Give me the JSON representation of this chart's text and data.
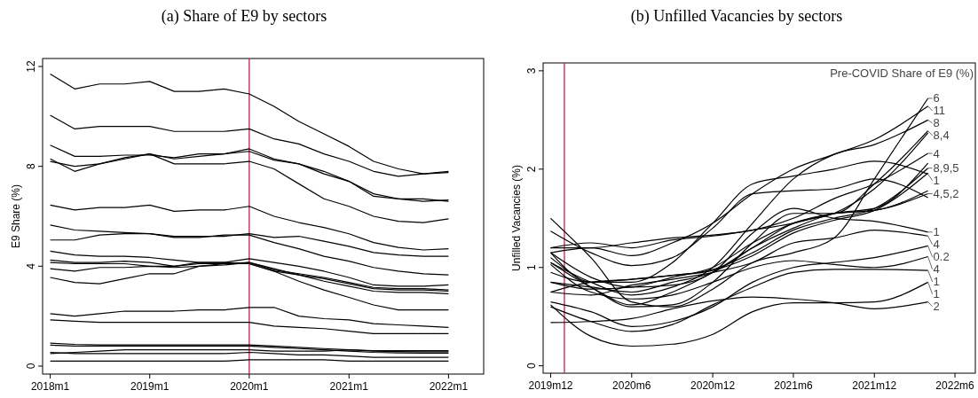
{
  "chart_data": [
    {
      "type": "line",
      "title": "(a) Share of E9 by sectors",
      "ylabel": "E9 Share (%)",
      "x": [
        "2018-01",
        "2018-04",
        "2018-07",
        "2018-10",
        "2019-01",
        "2019-04",
        "2019-07",
        "2019-10",
        "2020-01",
        "2020-04",
        "2020-07",
        "2020-10",
        "2021-01",
        "2021-04",
        "2021-07",
        "2021-10",
        "2022-01"
      ],
      "xlim": [
        "2017-12-04",
        "2022-05-10"
      ],
      "xticks": [
        {
          "value": "2018-01",
          "label": "2018m1"
        },
        {
          "value": "2019-01",
          "label": "2019m1"
        },
        {
          "value": "2020-01",
          "label": "2020m1"
        },
        {
          "value": "2021-01",
          "label": "2021m1"
        },
        {
          "value": "2022-01",
          "label": "2022m1"
        }
      ],
      "ylim": [
        -0.32,
        12.32
      ],
      "yticks": [
        0,
        4,
        8,
        12
      ],
      "grid": false,
      "ref_lines": [
        {
          "axis": "x",
          "value": "2020-01",
          "color": "#c8204a"
        }
      ],
      "series": [
        {
          "color": "#000000",
          "values": [
            11.7,
            11.1,
            11.3,
            11.3,
            11.4,
            11.0,
            11.0,
            11.1,
            10.9,
            10.4,
            9.8,
            9.3,
            8.8,
            8.2,
            7.9,
            7.7,
            7.8
          ]
        },
        {
          "color": "#000000",
          "values": [
            10.05,
            9.5,
            9.6,
            9.6,
            9.6,
            9.4,
            9.4,
            9.4,
            9.5,
            9.1,
            8.9,
            8.5,
            8.2,
            7.8,
            7.6,
            7.7,
            7.75
          ]
        },
        {
          "color": "#000000",
          "values": [
            8.85,
            8.4,
            8.4,
            8.45,
            8.45,
            8.35,
            8.5,
            8.5,
            8.7,
            8.3,
            8.1,
            7.8,
            7.4,
            6.8,
            6.7,
            6.6,
            6.65
          ]
        },
        {
          "color": "#000000",
          "values": [
            8.3,
            7.8,
            8.1,
            8.3,
            8.5,
            8.3,
            8.4,
            8.5,
            8.6,
            8.25,
            8.1,
            7.7,
            7.4,
            6.9,
            6.7,
            6.7,
            6.6
          ]
        },
        {
          "color": "#000000",
          "values": [
            8.2,
            8.0,
            8.1,
            8.35,
            8.5,
            8.1,
            8.1,
            8.1,
            8.2,
            7.9,
            7.3,
            6.7,
            6.4,
            6.0,
            5.8,
            5.75,
            5.9
          ]
        },
        {
          "color": "#000000",
          "values": [
            6.45,
            6.25,
            6.35,
            6.35,
            6.45,
            6.2,
            6.25,
            6.25,
            6.4,
            6.0,
            5.75,
            5.55,
            5.3,
            4.95,
            4.75,
            4.65,
            4.7
          ]
        },
        {
          "color": "#000000",
          "values": [
            5.65,
            5.45,
            5.4,
            5.35,
            5.3,
            5.2,
            5.2,
            5.2,
            5.3,
            5.15,
            5.2,
            5.0,
            4.8,
            4.55,
            4.45,
            4.4,
            4.4
          ]
        },
        {
          "color": "#000000",
          "values": [
            5.05,
            5.05,
            5.25,
            5.3,
            5.3,
            5.15,
            5.15,
            5.25,
            5.25,
            4.95,
            4.7,
            4.4,
            4.2,
            3.95,
            3.8,
            3.7,
            3.65
          ]
        },
        {
          "color": "#000000",
          "values": [
            4.6,
            4.45,
            4.4,
            4.4,
            4.35,
            4.25,
            4.15,
            4.15,
            4.3,
            4.15,
            4.0,
            3.8,
            3.55,
            3.25,
            3.2,
            3.2,
            3.25
          ]
        },
        {
          "color": "#000000",
          "values": [
            4.25,
            4.15,
            4.15,
            4.2,
            4.15,
            4.0,
            4.1,
            4.1,
            4.15,
            3.85,
            3.7,
            3.55,
            3.35,
            3.15,
            3.1,
            3.1,
            3.05
          ]
        },
        {
          "color": "#000000",
          "values": [
            4.15,
            4.1,
            4.1,
            4.1,
            4.0,
            4.0,
            4.15,
            4.15,
            4.1,
            3.8,
            3.65,
            3.5,
            3.3,
            3.1,
            3.05,
            3.05,
            3.0
          ]
        },
        {
          "color": "#000000",
          "values": [
            3.9,
            3.8,
            3.95,
            3.95,
            4.0,
            3.95,
            4.0,
            4.05,
            4.15,
            3.9,
            3.65,
            3.4,
            3.2,
            3.0,
            2.95,
            2.95,
            2.9
          ]
        },
        {
          "color": "#000000",
          "values": [
            3.55,
            3.35,
            3.3,
            3.5,
            3.7,
            3.7,
            4.0,
            4.1,
            4.1,
            3.8,
            3.4,
            3.05,
            2.75,
            2.45,
            2.25,
            2.25,
            2.25
          ]
        },
        {
          "color": "#000000",
          "values": [
            2.1,
            2.0,
            2.1,
            2.2,
            2.2,
            2.2,
            2.25,
            2.25,
            2.35,
            2.35,
            2.0,
            1.9,
            1.85,
            1.7,
            1.65,
            1.6,
            1.55
          ]
        },
        {
          "color": "#000000",
          "values": [
            1.85,
            1.8,
            1.75,
            1.75,
            1.75,
            1.75,
            1.75,
            1.75,
            1.75,
            1.6,
            1.55,
            1.5,
            1.4,
            1.3,
            1.3,
            1.3,
            1.3
          ]
        },
        {
          "color": "#000000",
          "values": [
            0.92,
            0.87,
            0.85,
            0.85,
            0.85,
            0.85,
            0.85,
            0.85,
            0.85,
            0.8,
            0.75,
            0.7,
            0.65,
            0.62,
            0.62,
            0.62,
            0.62
          ]
        },
        {
          "color": "#000000",
          "values": [
            0.84,
            0.8,
            0.8,
            0.8,
            0.8,
            0.8,
            0.8,
            0.8,
            0.8,
            0.75,
            0.7,
            0.65,
            0.6,
            0.55,
            0.53,
            0.52,
            0.52
          ]
        },
        {
          "color": "#000000",
          "values": [
            0.5,
            0.55,
            0.6,
            0.65,
            0.65,
            0.65,
            0.65,
            0.65,
            0.65,
            0.6,
            0.6,
            0.6,
            0.65,
            0.6,
            0.58,
            0.57,
            0.57
          ]
        },
        {
          "color": "#000000",
          "values": [
            0.55,
            0.5,
            0.5,
            0.5,
            0.5,
            0.5,
            0.5,
            0.5,
            0.55,
            0.5,
            0.45,
            0.45,
            0.4,
            0.35,
            0.35,
            0.35,
            0.35
          ]
        },
        {
          "color": "#000000",
          "values": [
            0.2,
            0.2,
            0.2,
            0.2,
            0.2,
            0.2,
            0.2,
            0.2,
            0.25,
            0.25,
            0.25,
            0.25,
            0.2,
            0.2,
            0.2,
            0.2,
            0.2
          ]
        }
      ]
    },
    {
      "type": "line",
      "title": "(b) Unfilled Vacancies by sectors",
      "ylabel": "Unfilled Vacancies (%)",
      "x": [
        "2019-12",
        "2020-03",
        "2020-06",
        "2020-09",
        "2020-12",
        "2021-03",
        "2021-06",
        "2021-09",
        "2021-12",
        "2022-04"
      ],
      "xlim": [
        "2019-11-14",
        "2022-07-17"
      ],
      "xticks": [
        {
          "value": "2019-12",
          "label": "2019m12"
        },
        {
          "value": "2020-06",
          "label": "2020m6"
        },
        {
          "value": "2020-12",
          "label": "2020m12"
        },
        {
          "value": "2021-06",
          "label": "2021m6"
        },
        {
          "value": "2021-12",
          "label": "2021m12"
        },
        {
          "value": "2022-06",
          "label": "2022m6"
        }
      ],
      "ylim": [
        -0.075,
        3.08
      ],
      "yticks": [
        0,
        1,
        2,
        3
      ],
      "grid": false,
      "ref_lines": [
        {
          "axis": "x",
          "value": "2020-01",
          "color": "#c8204a"
        }
      ],
      "annotations": [
        "Pre-COVID Share of E9 (%)",
        {
          "text": "6",
          "x": "2022-04",
          "y": 2.72
        },
        {
          "text": "11",
          "x": "2022-04",
          "y": 2.64
        },
        {
          "text": "8",
          "x": "2022-04",
          "y": 2.5
        },
        {
          "text": "8,4",
          "x": "2022-04",
          "y": 2.39
        },
        {
          "text": "4",
          "x": "2022-04",
          "y": 2.16
        },
        {
          "text": "8,9,5",
          "x": "2022-04",
          "y": 2.01
        },
        {
          "text": "1",
          "x": "2022-04",
          "y": 1.95
        },
        {
          "text": "4,5,2",
          "x": "2022-04",
          "y": 1.75
        },
        {
          "text": "1",
          "x": "2022-04",
          "y": 1.36
        },
        {
          "text": "4",
          "x": "2022-04",
          "y": 1.32
        },
        {
          "text": "0.2",
          "x": "2022-04",
          "y": 1.22
        },
        {
          "text": "4",
          "x": "2022-04",
          "y": 1.11
        },
        {
          "text": "1",
          "x": "2022-04",
          "y": 0.97
        },
        {
          "text": "1",
          "x": "2022-04",
          "y": 0.85
        },
        {
          "text": "2",
          "x": "2022-04",
          "y": 0.65
        }
      ],
      "series": [
        {
          "color": "#000000",
          "values": [
            1.5,
            1.1,
            0.65,
            0.6,
            0.78,
            1.05,
            1.15,
            1.3,
            1.9,
            2.72
          ]
        },
        {
          "color": "#000000",
          "values": [
            1.15,
            1.2,
            1.12,
            1.25,
            1.45,
            1.75,
            2.0,
            2.15,
            2.3,
            2.64
          ]
        },
        {
          "color": "#000000",
          "values": [
            1.05,
            0.85,
            0.72,
            0.8,
            1.0,
            1.45,
            1.9,
            2.15,
            2.25,
            2.5
          ]
        },
        {
          "color": "#000000",
          "values": [
            1.1,
            0.8,
            0.6,
            0.62,
            0.85,
            1.25,
            1.55,
            1.55,
            1.85,
            2.39
          ]
        },
        {
          "color": "#000000",
          "values": [
            0.85,
            0.8,
            0.75,
            0.85,
            0.95,
            1.2,
            1.45,
            1.55,
            1.8,
            2.37
          ]
        },
        {
          "color": "#000000",
          "values": [
            1.2,
            1.2,
            1.25,
            1.3,
            1.33,
            1.38,
            1.5,
            1.7,
            1.85,
            2.16
          ]
        },
        {
          "color": "#000000",
          "values": [
            1.05,
            0.8,
            0.62,
            0.75,
            0.95,
            1.2,
            1.4,
            1.55,
            1.6,
            2.06
          ]
        },
        {
          "color": "#000000",
          "values": [
            0.95,
            0.85,
            0.88,
            0.92,
            0.98,
            1.15,
            1.38,
            1.5,
            1.6,
            2.01
          ]
        },
        {
          "color": "#000000",
          "values": [
            0.75,
            0.85,
            0.88,
            0.92,
            0.97,
            1.12,
            1.35,
            1.48,
            1.58,
            1.96
          ]
        },
        {
          "color": "#000000",
          "values": [
            1.15,
            0.85,
            0.85,
            1.05,
            1.45,
            1.85,
            1.93,
            2.0,
            2.08,
            1.95
          ]
        },
        {
          "color": "#000000",
          "values": [
            1.2,
            1.25,
            1.2,
            1.28,
            1.32,
            1.38,
            1.45,
            1.55,
            1.58,
            1.78
          ]
        },
        {
          "color": "#000000",
          "values": [
            0.85,
            0.78,
            0.8,
            0.9,
            1.0,
            1.25,
            1.45,
            1.55,
            1.58,
            1.75
          ]
        },
        {
          "color": "#000000",
          "values": [
            1.37,
            1.15,
            1.02,
            1.1,
            1.4,
            1.75,
            1.78,
            1.8,
            1.9,
            1.71
          ]
        },
        {
          "color": "#000000",
          "values": [
            1.15,
            0.9,
            0.8,
            0.82,
            0.95,
            1.35,
            1.6,
            1.5,
            1.47,
            1.36
          ]
        },
        {
          "color": "#000000",
          "values": [
            0.75,
            0.72,
            0.82,
            0.88,
            0.95,
            1.05,
            1.25,
            1.3,
            1.38,
            1.32
          ]
        },
        {
          "color": "#000000",
          "values": [
            0.65,
            0.55,
            0.4,
            0.45,
            0.6,
            0.85,
            1.0,
            1.05,
            1.1,
            1.22
          ]
        },
        {
          "color": "#000000",
          "values": [
            1.03,
            0.75,
            0.68,
            0.72,
            0.85,
            1.0,
            1.07,
            1.03,
            1.0,
            1.11
          ]
        },
        {
          "color": "#000000",
          "values": [
            0.6,
            0.45,
            0.35,
            0.42,
            0.62,
            0.8,
            0.95,
            0.98,
            0.98,
            0.97
          ]
        },
        {
          "color": "#000000",
          "values": [
            0.62,
            0.3,
            0.2,
            0.22,
            0.32,
            0.55,
            0.64,
            0.64,
            0.65,
            0.85
          ]
        },
        {
          "color": "#000000",
          "values": [
            0.44,
            0.45,
            0.48,
            0.58,
            0.66,
            0.7,
            0.68,
            0.64,
            0.58,
            0.65
          ]
        }
      ]
    }
  ]
}
